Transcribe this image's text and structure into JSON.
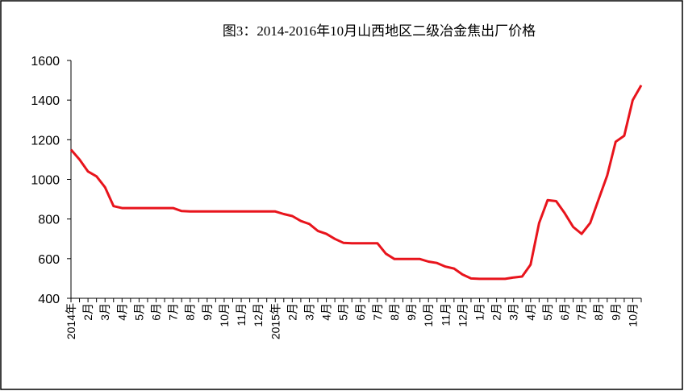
{
  "chart_data": {
    "type": "line",
    "title": "图3：2014-2016年10月山西地区二级冶金焦出厂价格",
    "categories": [
      "2014年",
      null,
      "2月",
      null,
      "3月",
      null,
      "4月",
      null,
      "5月",
      null,
      "6月",
      null,
      "7月",
      null,
      "8月",
      null,
      "9月",
      null,
      "10月",
      null,
      "11月",
      null,
      "12月",
      null,
      "2015年",
      null,
      "2月",
      null,
      "3月",
      null,
      "4月",
      null,
      "5月",
      null,
      "6月",
      null,
      "7月",
      null,
      "8月",
      null,
      "9月",
      null,
      "10月",
      null,
      "11月",
      null,
      "12月",
      null,
      "1月",
      null,
      "2月",
      null,
      "3月",
      null,
      "4月",
      null,
      "5月",
      null,
      "6月",
      null,
      "7月",
      null,
      "8月",
      null,
      "9月",
      null,
      "10月",
      null
    ],
    "series": [
      {
        "name": "二级冶金焦",
        "color": "#e8141c",
        "values": [
          1150,
          1100,
          1040,
          1015,
          960,
          865,
          855,
          855,
          855,
          855,
          855,
          855,
          855,
          840,
          838,
          838,
          838,
          838,
          838,
          838,
          838,
          838,
          838,
          838,
          838,
          825,
          815,
          790,
          775,
          740,
          725,
          700,
          680,
          678,
          678,
          678,
          678,
          625,
          598,
          598,
          598,
          598,
          585,
          578,
          560,
          550,
          520,
          500,
          498,
          498,
          498,
          498,
          505,
          510,
          570,
          780,
          895,
          890,
          830,
          760,
          725,
          780,
          900,
          1020,
          1190,
          1220,
          1400,
          1475
        ]
      }
    ],
    "ylim": [
      400,
      1600
    ],
    "yticks": [
      400,
      600,
      800,
      1000,
      1200,
      1400,
      1600
    ],
    "grid": false
  }
}
